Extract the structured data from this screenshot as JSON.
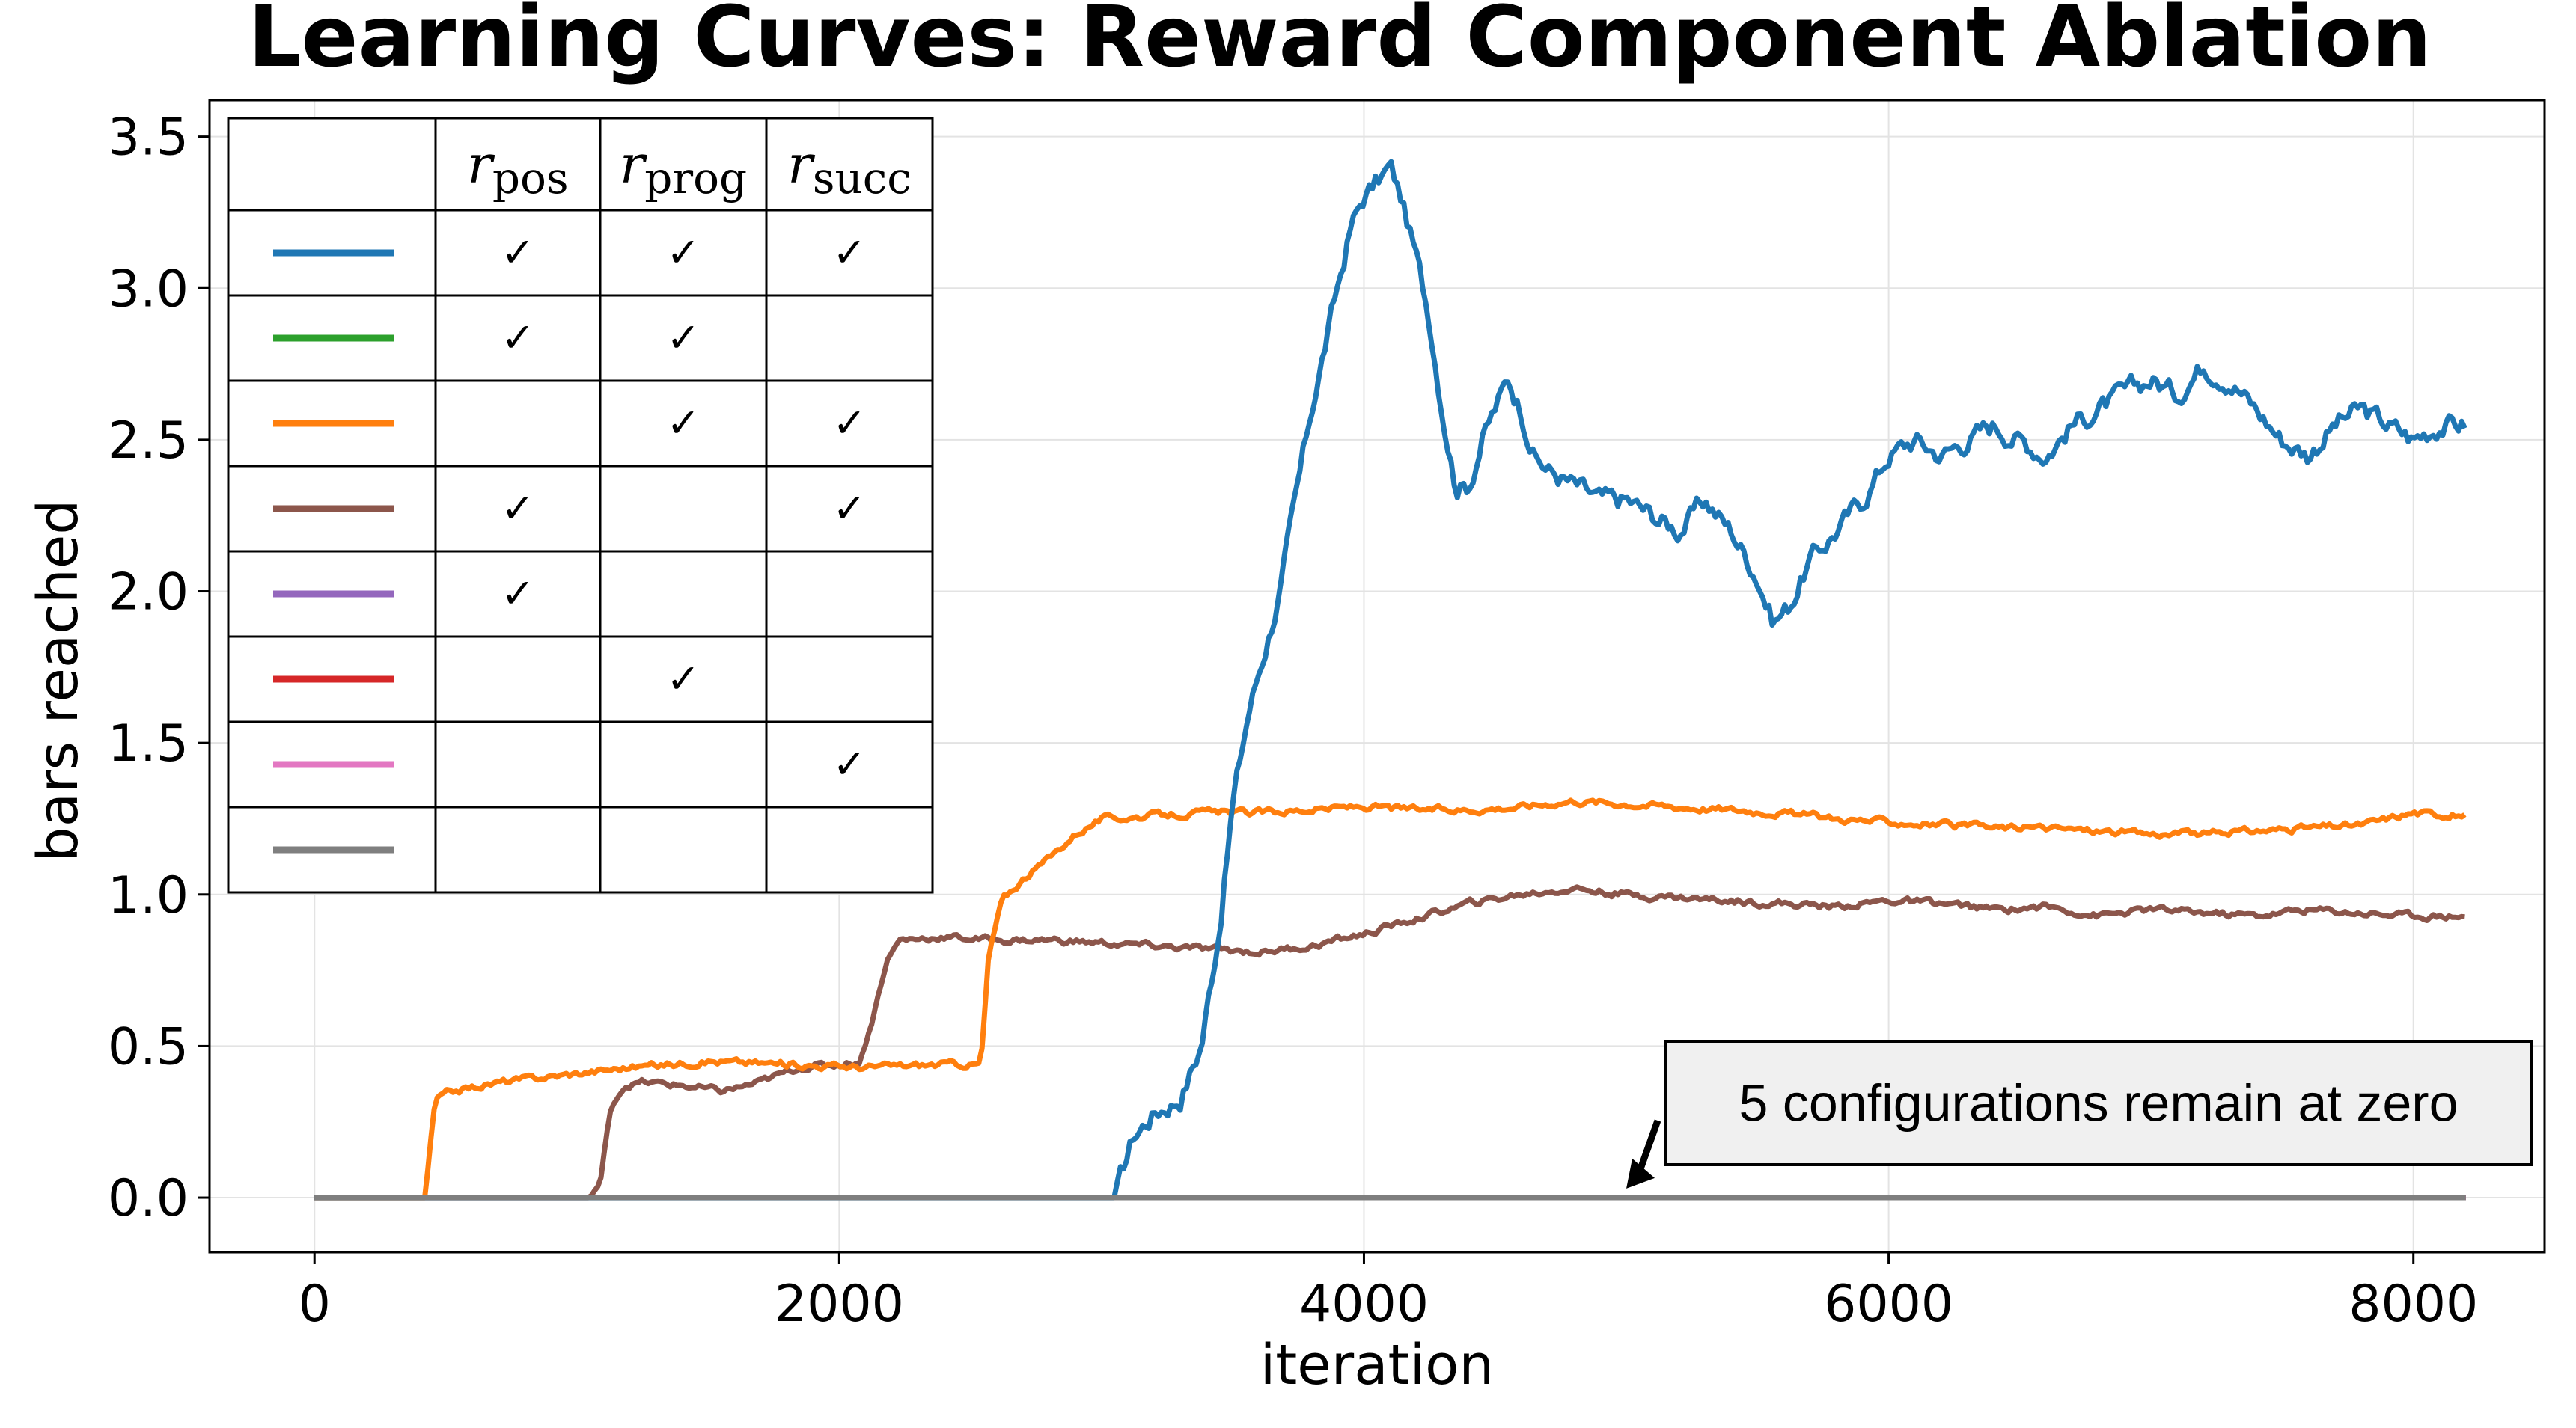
{
  "chart_data": {
    "type": "line",
    "title": "Learning Curves: Reward Component Ablation",
    "xlabel": "iteration",
    "ylabel": "bars reached",
    "xlim": [
      -400,
      8500
    ],
    "ylim": [
      -0.18,
      3.62
    ],
    "xticks": [
      0,
      2000,
      4000,
      6000,
      8000
    ],
    "xtick_labels": [
      "0",
      "2000",
      "4000",
      "6000",
      "8000"
    ],
    "yticks": [
      0.0,
      0.5,
      1.0,
      1.5,
      2.0,
      2.5,
      3.0,
      3.5
    ],
    "ytick_labels": [
      "0.0",
      "0.5",
      "1.0",
      "1.5",
      "2.0",
      "2.5",
      "3.0",
      "3.5"
    ],
    "grid": true,
    "legend_placement": "top-left",
    "legend_columns": [
      {
        "sym": "r",
        "sub": "pos"
      },
      {
        "sym": "r",
        "sub": "prog"
      },
      {
        "sym": "r",
        "sub": "succ"
      }
    ],
    "check_mark": "✓",
    "series": [
      {
        "color": "#1f77b4",
        "components": [
          true,
          true,
          true
        ],
        "points": [
          [
            0,
            0
          ],
          [
            3050,
            0
          ],
          [
            3120,
            0.2
          ],
          [
            3200,
            0.28
          ],
          [
            3300,
            0.33
          ],
          [
            3380,
            0.5
          ],
          [
            3450,
            0.9
          ],
          [
            3500,
            1.3
          ],
          [
            3560,
            1.6
          ],
          [
            3620,
            1.8
          ],
          [
            3680,
            2.0
          ],
          [
            3740,
            2.3
          ],
          [
            3800,
            2.6
          ],
          [
            3850,
            2.8
          ],
          [
            3900,
            3.0
          ],
          [
            3950,
            3.2
          ],
          [
            4000,
            3.3
          ],
          [
            4050,
            3.35
          ],
          [
            4100,
            3.4
          ],
          [
            4140,
            3.3
          ],
          [
            4200,
            3.1
          ],
          [
            4250,
            2.9
          ],
          [
            4300,
            2.6
          ],
          [
            4350,
            2.35
          ],
          [
            4400,
            2.35
          ],
          [
            4450,
            2.5
          ],
          [
            4500,
            2.6
          ],
          [
            4550,
            2.7
          ],
          [
            4600,
            2.6
          ],
          [
            4650,
            2.45
          ],
          [
            4700,
            2.4
          ],
          [
            4800,
            2.35
          ],
          [
            4900,
            2.3
          ],
          [
            5000,
            2.3
          ],
          [
            5100,
            2.25
          ],
          [
            5200,
            2.2
          ],
          [
            5300,
            2.3
          ],
          [
            5400,
            2.2
          ],
          [
            5500,
            2.05
          ],
          [
            5560,
            1.9
          ],
          [
            5620,
            1.95
          ],
          [
            5700,
            2.1
          ],
          [
            5800,
            2.2
          ],
          [
            5900,
            2.3
          ],
          [
            6000,
            2.45
          ],
          [
            6100,
            2.5
          ],
          [
            6200,
            2.45
          ],
          [
            6300,
            2.5
          ],
          [
            6400,
            2.55
          ],
          [
            6500,
            2.5
          ],
          [
            6600,
            2.45
          ],
          [
            6700,
            2.55
          ],
          [
            6800,
            2.6
          ],
          [
            6900,
            2.65
          ],
          [
            7000,
            2.7
          ],
          [
            7100,
            2.65
          ],
          [
            7200,
            2.75
          ],
          [
            7300,
            2.7
          ],
          [
            7400,
            2.6
          ],
          [
            7500,
            2.5
          ],
          [
            7600,
            2.45
          ],
          [
            7700,
            2.55
          ],
          [
            7800,
            2.6
          ],
          [
            7900,
            2.55
          ],
          [
            8000,
            2.5
          ],
          [
            8100,
            2.55
          ],
          [
            8200,
            2.55
          ]
        ]
      },
      {
        "color": "#2ca02c",
        "components": [
          true,
          true,
          false
        ],
        "points": [
          [
            0,
            0
          ],
          [
            8200,
            0
          ]
        ]
      },
      {
        "color": "#ff7f0e",
        "components": [
          false,
          true,
          true
        ],
        "points": [
          [
            0,
            0
          ],
          [
            420,
            0
          ],
          [
            460,
            0.32
          ],
          [
            520,
            0.35
          ],
          [
            700,
            0.38
          ],
          [
            900,
            0.4
          ],
          [
            1200,
            0.43
          ],
          [
            1500,
            0.45
          ],
          [
            1800,
            0.44
          ],
          [
            2100,
            0.43
          ],
          [
            2400,
            0.44
          ],
          [
            2540,
            0.44
          ],
          [
            2570,
            0.8
          ],
          [
            2620,
            0.98
          ],
          [
            2700,
            1.05
          ],
          [
            2800,
            1.12
          ],
          [
            2900,
            1.2
          ],
          [
            3000,
            1.25
          ],
          [
            3200,
            1.26
          ],
          [
            3400,
            1.27
          ],
          [
            3600,
            1.27
          ],
          [
            3800,
            1.28
          ],
          [
            4000,
            1.29
          ],
          [
            4200,
            1.28
          ],
          [
            4400,
            1.28
          ],
          [
            4600,
            1.29
          ],
          [
            4800,
            1.31
          ],
          [
            5000,
            1.3
          ],
          [
            5200,
            1.29
          ],
          [
            5400,
            1.28
          ],
          [
            5600,
            1.27
          ],
          [
            5800,
            1.25
          ],
          [
            6000,
            1.24
          ],
          [
            6200,
            1.23
          ],
          [
            6400,
            1.22
          ],
          [
            6600,
            1.22
          ],
          [
            6800,
            1.21
          ],
          [
            7000,
            1.2
          ],
          [
            7200,
            1.2
          ],
          [
            7400,
            1.21
          ],
          [
            7600,
            1.22
          ],
          [
            7800,
            1.23
          ],
          [
            8000,
            1.27
          ],
          [
            8200,
            1.26
          ]
        ]
      },
      {
        "color": "#8c564b",
        "components": [
          true,
          false,
          true
        ],
        "points": [
          [
            0,
            0
          ],
          [
            1050,
            0
          ],
          [
            1090,
            0.05
          ],
          [
            1130,
            0.3
          ],
          [
            1180,
            0.37
          ],
          [
            1250,
            0.38
          ],
          [
            1400,
            0.37
          ],
          [
            1550,
            0.35
          ],
          [
            1700,
            0.38
          ],
          [
            1850,
            0.43
          ],
          [
            2000,
            0.44
          ],
          [
            2080,
            0.45
          ],
          [
            2130,
            0.6
          ],
          [
            2180,
            0.78
          ],
          [
            2230,
            0.85
          ],
          [
            2400,
            0.86
          ],
          [
            2600,
            0.85
          ],
          [
            2800,
            0.85
          ],
          [
            3000,
            0.84
          ],
          [
            3200,
            0.83
          ],
          [
            3400,
            0.82
          ],
          [
            3600,
            0.81
          ],
          [
            3800,
            0.83
          ],
          [
            4000,
            0.87
          ],
          [
            4200,
            0.92
          ],
          [
            4400,
            0.97
          ],
          [
            4600,
            1.0
          ],
          [
            4800,
            1.02
          ],
          [
            5000,
            1.0
          ],
          [
            5200,
            0.99
          ],
          [
            5400,
            0.98
          ],
          [
            5600,
            0.97
          ],
          [
            5800,
            0.96
          ],
          [
            6000,
            0.98
          ],
          [
            6200,
            0.97
          ],
          [
            6400,
            0.95
          ],
          [
            6600,
            0.96
          ],
          [
            6800,
            0.93
          ],
          [
            7000,
            0.95
          ],
          [
            7200,
            0.94
          ],
          [
            7400,
            0.93
          ],
          [
            7600,
            0.95
          ],
          [
            7800,
            0.94
          ],
          [
            8000,
            0.93
          ],
          [
            8200,
            0.93
          ]
        ]
      },
      {
        "color": "#9467bd",
        "components": [
          true,
          false,
          false
        ],
        "points": [
          [
            0,
            0
          ],
          [
            8200,
            0
          ]
        ]
      },
      {
        "color": "#d62728",
        "components": [
          false,
          true,
          false
        ],
        "points": [
          [
            0,
            0
          ],
          [
            8200,
            0
          ]
        ]
      },
      {
        "color": "#e377c2",
        "components": [
          false,
          false,
          true
        ],
        "points": [
          [
            0,
            0
          ],
          [
            8200,
            0
          ]
        ]
      },
      {
        "color": "#7f7f7f",
        "components": [
          false,
          false,
          false
        ],
        "points": [
          [
            0,
            0
          ],
          [
            8200,
            0
          ]
        ]
      }
    ],
    "annotation": {
      "text": "5 configurations remain at zero",
      "x": 5000,
      "y": 0.03
    }
  }
}
